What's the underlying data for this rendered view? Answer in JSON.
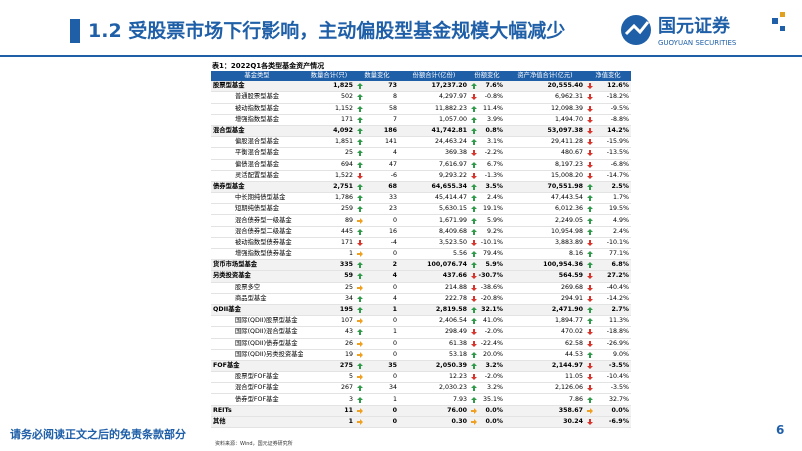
{
  "header": {
    "title": "1.2 受股票市场下行影响，主动偏股型基金规模大幅减少",
    "logo_cn": "国元证券",
    "logo_en": "GUOYUAN SECURITIES"
  },
  "table": {
    "caption": "表1：2022Q1各类型基金资产情况",
    "columns": [
      "基金类型",
      "数量合计(只)",
      "数量变化",
      "份额合计(亿份)",
      "份额变化",
      "资产净值合计(亿元)",
      "净值变化"
    ],
    "rows": [
      {
        "bold": true,
        "cells": [
          "股票型基金",
          "1,825",
          "73",
          "17,237.20",
          "7.6%",
          "20,555.40",
          "12.6%"
        ],
        "arrows": [
          "up",
          "up",
          "down"
        ]
      },
      {
        "cells": [
          "普通股票型基金",
          "502",
          "8",
          "4,297.97",
          "-0.8%",
          "6,962.31",
          "-18.2%"
        ],
        "arrows": [
          "up",
          "down",
          "down"
        ]
      },
      {
        "cells": [
          "被动指数型基金",
          "1,152",
          "58",
          "11,882.23",
          "11.4%",
          "12,098.39",
          "-9.5%"
        ],
        "arrows": [
          "up",
          "up",
          "down"
        ]
      },
      {
        "cells": [
          "增强指数型基金",
          "171",
          "7",
          "1,057.00",
          "3.9%",
          "1,494.70",
          "-8.8%"
        ],
        "arrows": [
          "up",
          "up",
          "down"
        ]
      },
      {
        "bold": true,
        "cells": [
          "混合型基金",
          "4,092",
          "186",
          "41,742.81",
          "0.8%",
          "53,097.38",
          "14.2%"
        ],
        "arrows": [
          "up",
          "up",
          "down"
        ]
      },
      {
        "cells": [
          "偏股混合型基金",
          "1,851",
          "141",
          "24,463.24",
          "3.1%",
          "29,411.28",
          "-15.9%"
        ],
        "arrows": [
          "up",
          "up",
          "down"
        ]
      },
      {
        "cells": [
          "平衡混合型基金",
          "25",
          "4",
          "369.38",
          "-2.2%",
          "480.67",
          "-13.5%"
        ],
        "arrows": [
          "up",
          "down",
          "down"
        ]
      },
      {
        "cells": [
          "偏债混合型基金",
          "694",
          "47",
          "7,616.97",
          "6.7%",
          "8,197.23",
          "-6.8%"
        ],
        "arrows": [
          "up",
          "up",
          "down"
        ]
      },
      {
        "cells": [
          "灵活配置型基金",
          "1,522",
          "-6",
          "9,293.22",
          "-1.3%",
          "15,008.20",
          "-14.7%"
        ],
        "arrows": [
          "down",
          "down",
          "down"
        ]
      },
      {
        "bold": true,
        "cells": [
          "债券型基金",
          "2,751",
          "68",
          "64,655.34",
          "3.5%",
          "70,551.98",
          "2.5%"
        ],
        "arrows": [
          "up",
          "up",
          "up"
        ]
      },
      {
        "cells": [
          "中长期纯债型基金",
          "1,786",
          "33",
          "45,414.47",
          "2.4%",
          "47,443.54",
          "1.7%"
        ],
        "arrows": [
          "up",
          "up",
          "up"
        ]
      },
      {
        "cells": [
          "短期纯债型基金",
          "259",
          "23",
          "5,630.15",
          "19.1%",
          "6,012.36",
          "19.5%"
        ],
        "arrows": [
          "up",
          "up",
          "up"
        ]
      },
      {
        "cells": [
          "混合债券型一级基金",
          "89",
          "0",
          "1,671.99",
          "5.9%",
          "2,249.05",
          "4.9%"
        ],
        "arrows": [
          "flat",
          "up",
          "up"
        ]
      },
      {
        "cells": [
          "混合债券型二级基金",
          "445",
          "16",
          "8,409.68",
          "9.2%",
          "10,954.98",
          "2.4%"
        ],
        "arrows": [
          "up",
          "up",
          "up"
        ]
      },
      {
        "cells": [
          "被动指数型债券基金",
          "171",
          "-4",
          "3,523.50",
          "-10.1%",
          "3,883.89",
          "-10.1%"
        ],
        "arrows": [
          "down",
          "down",
          "down"
        ]
      },
      {
        "cells": [
          "增强指数型债券基金",
          "1",
          "0",
          "5.56",
          "79.4%",
          "8.16",
          "77.1%"
        ],
        "arrows": [
          "flat",
          "up",
          "up"
        ]
      },
      {
        "bold": true,
        "cells": [
          "货币市场型基金",
          "335",
          "2",
          "100,076.74",
          "5.9%",
          "100,954.36",
          "6.8%"
        ],
        "arrows": [
          "up",
          "up",
          "up"
        ]
      },
      {
        "bold": true,
        "cells": [
          "另类投资基金",
          "59",
          "4",
          "437.66",
          "-30.7%",
          "564.59",
          "27.2%"
        ],
        "arrows": [
          "up",
          "down",
          "down"
        ]
      },
      {
        "cells": [
          "股票多空",
          "25",
          "0",
          "214.88",
          "-38.6%",
          "269.68",
          "-40.4%"
        ],
        "arrows": [
          "flat",
          "down",
          "down"
        ]
      },
      {
        "cells": [
          "商品型基金",
          "34",
          "4",
          "222.78",
          "-20.8%",
          "294.91",
          "-14.2%"
        ],
        "arrows": [
          "up",
          "down",
          "down"
        ]
      },
      {
        "bold": true,
        "cells": [
          "QDII基金",
          "195",
          "1",
          "2,819.58",
          "32.1%",
          "2,471.90",
          "2.7%"
        ],
        "arrows": [
          "up",
          "up",
          "up"
        ]
      },
      {
        "cells": [
          "国际(QDII)股票型基金",
          "107",
          "0",
          "2,406.54",
          "41.0%",
          "1,894.77",
          "11.3%"
        ],
        "arrows": [
          "flat",
          "up",
          "up"
        ]
      },
      {
        "cells": [
          "国际(QDII)混合型基金",
          "43",
          "1",
          "298.49",
          "-2.0%",
          "470.02",
          "-18.8%"
        ],
        "arrows": [
          "up",
          "down",
          "down"
        ]
      },
      {
        "cells": [
          "国际(QDII)债券型基金",
          "26",
          "0",
          "61.38",
          "-22.4%",
          "62.58",
          "-26.9%"
        ],
        "arrows": [
          "flat",
          "down",
          "down"
        ]
      },
      {
        "cells": [
          "国际(QDII)另类投资基金",
          "19",
          "0",
          "53.18",
          "20.0%",
          "44.53",
          "9.0%"
        ],
        "arrows": [
          "flat",
          "up",
          "up"
        ]
      },
      {
        "bold": true,
        "cells": [
          "FOF基金",
          "275",
          "35",
          "2,050.39",
          "3.2%",
          "2,144.97",
          "-3.5%"
        ],
        "arrows": [
          "up",
          "up",
          "down"
        ]
      },
      {
        "cells": [
          "股票型FOF基金",
          "5",
          "0",
          "12.23",
          "-2.0%",
          "11.05",
          "-10.4%"
        ],
        "arrows": [
          "flat",
          "down",
          "down"
        ]
      },
      {
        "cells": [
          "混合型FOF基金",
          "267",
          "34",
          "2,030.23",
          "3.2%",
          "2,126.06",
          "-3.5%"
        ],
        "arrows": [
          "up",
          "up",
          "down"
        ]
      },
      {
        "cells": [
          "债券型FOF基金",
          "3",
          "1",
          "7.93",
          "35.1%",
          "7.86",
          "32.7%"
        ],
        "arrows": [
          "up",
          "up",
          "up"
        ]
      },
      {
        "bold": true,
        "cells": [
          "REITs",
          "11",
          "0",
          "76.00",
          "0.0%",
          "358.67",
          "0.0%"
        ],
        "arrows": [
          "flat",
          "flat",
          "flat"
        ]
      },
      {
        "bold": true,
        "cells": [
          "其他",
          "1",
          "0",
          "0.30",
          "0.0%",
          "30.24",
          "-6.9%"
        ],
        "arrows": [
          "flat",
          "flat",
          "down"
        ]
      }
    ],
    "source": "资料来源：Wind，国元证券研究所"
  },
  "footer": {
    "disclaimer": "请务必阅读正文之后的免责条款部分",
    "page": "6"
  }
}
